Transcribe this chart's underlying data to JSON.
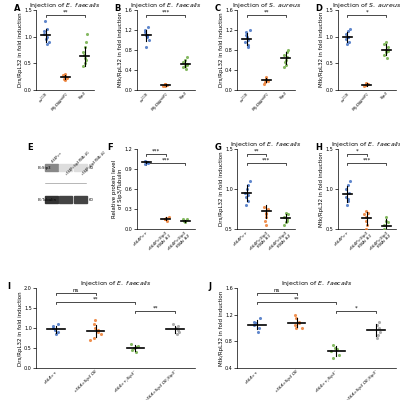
{
  "panel_A": {
    "title": "Injection of E. faecalis",
    "ylabel": "Drs/RpL32 in fold induction",
    "groups": [
      "w^1118",
      "MyD88^attP2",
      "Sip3"
    ],
    "colors": [
      "#4472C4",
      "#ED7D31",
      "#70AD47"
    ],
    "data": [
      [
        1.0,
        1.05,
        1.1,
        0.95,
        1.15,
        1.3,
        0.9,
        0.85
      ],
      [
        0.25,
        0.3,
        0.2,
        0.22,
        0.18,
        0.28
      ],
      [
        0.65,
        0.55,
        0.7,
        0.45,
        0.8,
        0.6,
        0.5,
        1.05,
        0.9
      ]
    ],
    "means": [
      1.02,
      0.24,
      0.63
    ],
    "stds": [
      0.12,
      0.04,
      0.18
    ],
    "ylim": [
      0,
      1.5
    ],
    "yticks": [
      0,
      0.5,
      1.0,
      1.5
    ],
    "sig": [
      [
        0,
        2,
        "**"
      ]
    ]
  },
  "panel_B": {
    "title": "Injection of E. faecalis",
    "ylabel": "Mtk/RpL32 in fold induction",
    "groups": [
      "w^1118",
      "MyD88^attP2",
      "Sip3"
    ],
    "colors": [
      "#4472C4",
      "#ED7D31",
      "#70AD47"
    ],
    "data": [
      [
        1.1,
        1.15,
        1.2,
        1.05,
        1.25,
        1.1,
        1.0,
        1.08,
        0.85
      ],
      [
        0.08,
        0.12,
        0.1,
        0.09,
        0.07,
        0.11
      ],
      [
        0.5,
        0.45,
        0.55,
        0.48,
        0.6,
        0.42,
        0.52,
        0.65
      ]
    ],
    "means": [
      1.09,
      0.095,
      0.52
    ],
    "stds": [
      0.11,
      0.02,
      0.07
    ],
    "ylim": [
      0,
      1.6
    ],
    "yticks": [
      0,
      0.4,
      0.8,
      1.2,
      1.6
    ],
    "sig": [
      [
        0,
        2,
        "***"
      ]
    ]
  },
  "panel_C": {
    "title": "Injection of S. aureus",
    "ylabel": "Drs/RpL32 in fold induction",
    "groups": [
      "w^1118",
      "MyD88^attP2",
      "Sip3"
    ],
    "colors": [
      "#4472C4",
      "#ED7D31",
      "#70AD47"
    ],
    "data": [
      [
        1.0,
        1.1,
        0.95,
        1.05,
        0.9,
        1.15,
        1.2,
        0.85
      ],
      [
        0.2,
        0.25,
        0.15,
        0.18,
        0.22,
        0.12
      ],
      [
        0.55,
        0.65,
        0.45,
        0.7,
        0.6,
        0.5,
        0.75,
        0.8
      ]
    ],
    "means": [
      1.02,
      0.19,
      0.63
    ],
    "stds": [
      0.12,
      0.04,
      0.12
    ],
    "ylim": [
      0,
      1.6
    ],
    "yticks": [
      0,
      0.4,
      0.8,
      1.2,
      1.6
    ],
    "sig": [
      [
        0,
        2,
        "**"
      ]
    ]
  },
  "panel_D": {
    "title": "Injection of S. aureus",
    "ylabel": "Mtk/RpL32 in fold induction",
    "groups": [
      "w^1118",
      "MyD88^attP2",
      "Sip3"
    ],
    "colors": [
      "#4472C4",
      "#ED7D31",
      "#70AD47"
    ],
    "data": [
      [
        1.0,
        1.05,
        0.95,
        1.1,
        0.9,
        0.85,
        1.15,
        1.0
      ],
      [
        0.1,
        0.12,
        0.08,
        0.11,
        0.09,
        0.07
      ],
      [
        0.75,
        0.8,
        0.65,
        0.85,
        0.7,
        0.9,
        0.6,
        0.72
      ]
    ],
    "means": [
      0.99,
      0.095,
      0.75
    ],
    "stds": [
      0.1,
      0.02,
      0.1
    ],
    "ylim": [
      0,
      1.5
    ],
    "yticks": [
      0,
      0.5,
      1.0,
      1.5
    ],
    "sig": [
      [
        0,
        2,
        "*"
      ]
    ]
  },
  "panel_F": {
    "title": "",
    "ylabel": "Relative protein level\nof Sip3/Tubulin",
    "groups": [
      "c564P>+",
      "c564P>Sip3\nRNAi #1",
      "c564P>Sip3\nRNAi #2"
    ],
    "colors": [
      "#4472C4",
      "#ED7D31",
      "#70AD47"
    ],
    "data": [
      [
        1.0,
        1.02,
        0.98,
        1.01,
        0.99
      ],
      [
        0.15,
        0.18,
        0.12,
        0.16,
        0.14
      ],
      [
        0.12,
        0.15,
        0.1,
        0.14,
        0.11
      ]
    ],
    "means": [
      1.0,
      0.15,
      0.12
    ],
    "stds": [
      0.015,
      0.022,
      0.018
    ],
    "ylim": [
      0,
      1.2
    ],
    "yticks": [
      0,
      0.3,
      0.6,
      0.9,
      1.2
    ],
    "sig": [
      [
        0,
        1,
        "***"
      ],
      [
        0,
        2,
        "***"
      ]
    ]
  },
  "panel_G": {
    "title": "Injection of E. faecalis",
    "ylabel": "Drs/RpL32 in fold induction",
    "groups": [
      "c564P>+",
      "c564P>Sip3\nRNAi #1",
      "c564P>Sip3\nRNAi #2"
    ],
    "colors": [
      "#4472C4",
      "#ED7D31",
      "#70AD47"
    ],
    "data": [
      [
        0.85,
        0.9,
        0.95,
        1.0,
        1.05,
        0.8,
        1.1,
        0.92
      ],
      [
        0.65,
        0.7,
        0.6,
        0.75,
        0.55,
        0.78,
        0.68
      ],
      [
        0.6,
        0.65,
        0.55,
        0.7,
        0.58,
        0.62,
        0.68
      ]
    ],
    "means": [
      0.95,
      0.72,
      0.63
    ],
    "stds": [
      0.1,
      0.08,
      0.05
    ],
    "ylim": [
      0.5,
      1.5
    ],
    "yticks": [
      0.5,
      1.0,
      1.5
    ],
    "sig": [
      [
        0,
        1,
        "**"
      ],
      [
        0,
        2,
        "***"
      ]
    ]
  },
  "panel_H": {
    "title": "Injection of E. faecalis",
    "ylabel": "Mtk/RpL32 in fold induction",
    "groups": [
      "c564P>+",
      "c564P>Sip3\nRNAi #1",
      "c564P>Sip3\nRNAi #2"
    ],
    "colors": [
      "#4472C4",
      "#ED7D31",
      "#70AD47"
    ],
    "data": [
      [
        0.85,
        0.9,
        1.0,
        1.05,
        0.95,
        0.8,
        1.1,
        0.88
      ],
      [
        0.55,
        0.65,
        0.6,
        0.7,
        0.5,
        0.68,
        0.72
      ],
      [
        0.45,
        0.55,
        0.5,
        0.6,
        0.65,
        0.42,
        0.58
      ]
    ],
    "means": [
      0.94,
      0.63,
      0.54
    ],
    "stds": [
      0.1,
      0.08,
      0.08
    ],
    "ylim": [
      0.5,
      1.5
    ],
    "yticks": [
      0.5,
      1.0,
      1.5
    ],
    "sig": [
      [
        0,
        1,
        "*"
      ],
      [
        0,
        2,
        "***"
      ]
    ]
  },
  "panel_I": {
    "title": "Injection of E. faecalis",
    "ylabel": "Drs/RpL32 in fold induction",
    "groups": [
      "c564>+",
      "c564>Sip3 OE",
      "c564>+;Sip3⁻",
      "c564>Sip3 OE;Sip3⁻"
    ],
    "colors": [
      "#4472C4",
      "#ED7D31",
      "#70AD47",
      "#A0A0A0"
    ],
    "data": [
      [
        0.9,
        1.0,
        1.05,
        0.85,
        1.1,
        0.95
      ],
      [
        0.85,
        0.9,
        1.0,
        1.1,
        0.75,
        0.95,
        1.2,
        0.7
      ],
      [
        0.5,
        0.55,
        0.45,
        0.6,
        0.4,
        0.52
      ],
      [
        0.85,
        0.9,
        0.95,
        1.0,
        1.05,
        1.1
      ]
    ],
    "means": [
      0.97,
      0.93,
      0.5,
      0.97
    ],
    "stds": [
      0.09,
      0.16,
      0.07,
      0.09
    ],
    "ylim": [
      0,
      2.0
    ],
    "yticks": [
      0,
      0.5,
      1.0,
      1.5,
      2.0
    ],
    "sig": [
      [
        0,
        1,
        "ns"
      ],
      [
        0,
        2,
        "**"
      ],
      [
        2,
        3,
        "**"
      ]
    ]
  },
  "panel_J": {
    "title": "Injection of E. faecalis",
    "ylabel": "Mtk/RpL32 in fold induction",
    "groups": [
      "c564>+",
      "c564>Sip3 OE",
      "c564>+;Sip3⁻",
      "c564>Sip3 OE;Sip3⁻"
    ],
    "colors": [
      "#4472C4",
      "#ED7D31",
      "#70AD47",
      "#A0A0A0"
    ],
    "data": [
      [
        1.0,
        1.05,
        1.1,
        0.95,
        1.15,
        1.08
      ],
      [
        1.0,
        1.1,
        1.15,
        1.05,
        1.2,
        1.08,
        1.0
      ],
      [
        0.65,
        0.7,
        0.6,
        0.75,
        0.55,
        0.68
      ],
      [
        0.85,
        0.9,
        0.95,
        1.0,
        1.05,
        1.1
      ]
    ],
    "means": [
      1.055,
      1.083,
      0.655,
      0.975
    ],
    "stds": [
      0.07,
      0.07,
      0.07,
      0.09
    ],
    "ylim": [
      0.4,
      1.6
    ],
    "yticks": [
      0.4,
      0.8,
      1.2,
      1.6
    ],
    "sig": [
      [
        0,
        1,
        "ns"
      ],
      [
        0,
        2,
        "**"
      ],
      [
        2,
        3,
        "*"
      ]
    ]
  }
}
